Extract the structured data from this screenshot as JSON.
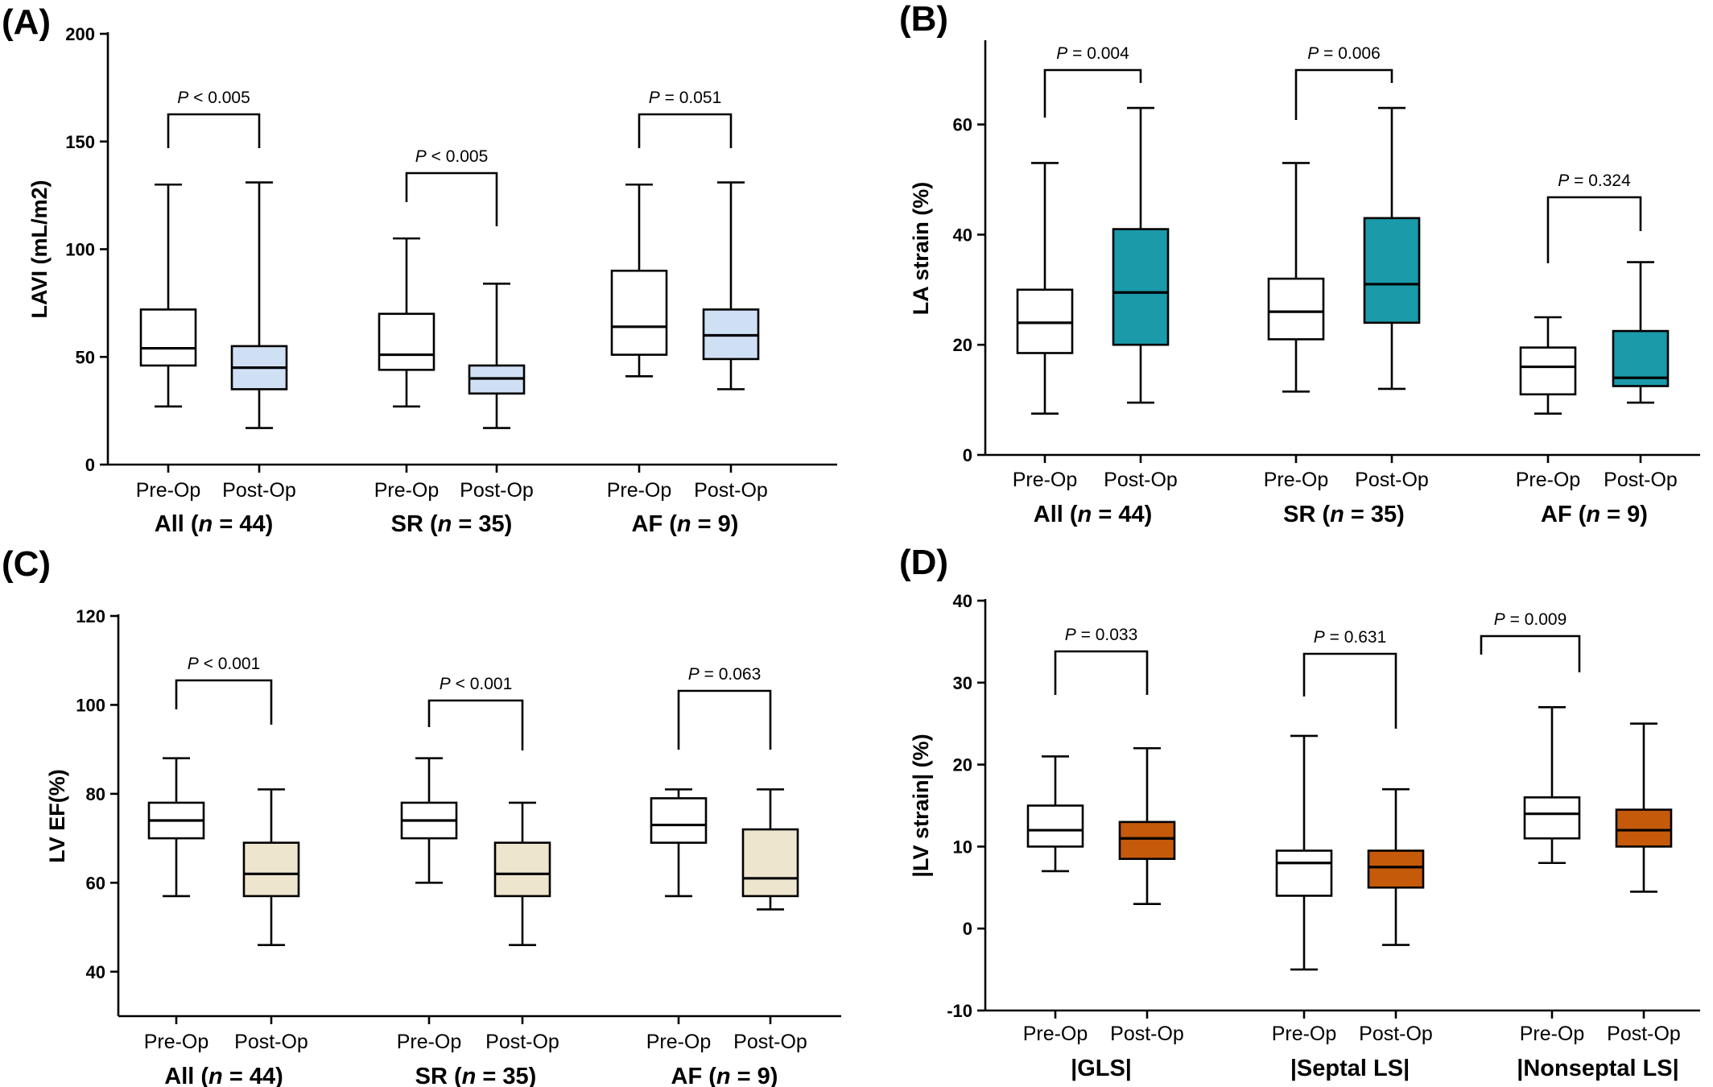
{
  "chart_data": [
    {
      "id": "A",
      "type": "box",
      "panel_label": "(A)",
      "ylabel": "LAVI (mL/m2)",
      "ylim": [
        0,
        200
      ],
      "yticks": [
        0,
        50,
        100,
        150,
        200
      ],
      "box_fill": "#cfe0f5",
      "conditions": [
        "Pre-Op",
        "Post-Op"
      ],
      "groups": [
        {
          "label_main": "All",
          "label_n": "n",
          "label_rest": " = 44)",
          "pval": "< 0.005",
          "pre": {
            "min": 27,
            "q1": 46,
            "median": 54,
            "q3": 72,
            "max": 130
          },
          "post": {
            "min": 17,
            "q1": 35,
            "median": 45,
            "q3": 55,
            "max": 131
          }
        },
        {
          "label_main": "SR",
          "label_n": "n",
          "label_rest": " = 35)",
          "pval": "< 0.005",
          "pre": {
            "min": 27,
            "q1": 44,
            "median": 51,
            "q3": 70,
            "max": 105
          },
          "post": {
            "min": 17,
            "q1": 33,
            "median": 40,
            "q3": 46,
            "max": 84
          }
        },
        {
          "label_main": "AF",
          "label_n": "n",
          "label_rest": " = 9)",
          "pval": "= 0.051",
          "pre": {
            "min": 41,
            "q1": 51,
            "median": 64,
            "q3": 90,
            "max": 130
          },
          "post": {
            "min": 35,
            "q1": 49,
            "median": 60,
            "q3": 72,
            "max": 131
          }
        }
      ]
    },
    {
      "id": "B",
      "type": "box",
      "panel_label": "(B)",
      "ylabel": "LA strain (%)",
      "ylim": [
        0,
        75
      ],
      "yticks": [
        0,
        20,
        40,
        60
      ],
      "box_fill": "#1b9aaa",
      "conditions": [
        "Pre-Op",
        "Post-Op"
      ],
      "groups": [
        {
          "label_main": "All",
          "label_n": "n",
          "label_rest": " = 44)",
          "pval": "= 0.004",
          "pre": {
            "min": 7.5,
            "q1": 18.5,
            "median": 24,
            "q3": 30,
            "max": 53
          },
          "post": {
            "min": 9.5,
            "q1": 20,
            "median": 29.5,
            "q3": 41,
            "max": 63
          }
        },
        {
          "label_main": "SR",
          "label_n": "n",
          "label_rest": " = 35)",
          "pval": "= 0.006",
          "pre": {
            "min": 11.5,
            "q1": 21,
            "median": 26,
            "q3": 32,
            "max": 53
          },
          "post": {
            "min": 12,
            "q1": 24,
            "median": 31,
            "q3": 43,
            "max": 63
          }
        },
        {
          "label_main": "AF",
          "label_n": "n",
          "label_rest": " = 9)",
          "pval": "= 0.324",
          "pre": {
            "min": 7.5,
            "q1": 11,
            "median": 16,
            "q3": 19.5,
            "max": 25
          },
          "post": {
            "min": 9.5,
            "q1": 12.5,
            "median": 14,
            "q3": 22.5,
            "max": 35
          }
        }
      ]
    },
    {
      "id": "C",
      "type": "box",
      "panel_label": "(C)",
      "ylabel": "LV EF(%)",
      "ylim": [
        30,
        120
      ],
      "yticks": [
        40,
        60,
        80,
        100,
        120
      ],
      "box_fill": "#ede5cd",
      "conditions": [
        "Pre-Op",
        "Post-Op"
      ],
      "groups": [
        {
          "label_main": "All",
          "label_n": "n",
          "label_rest": " = 44)",
          "pval": "< 0.001",
          "pre": {
            "min": 57,
            "q1": 70,
            "median": 74,
            "q3": 78,
            "max": 88
          },
          "post": {
            "min": 46,
            "q1": 57,
            "median": 62,
            "q3": 69,
            "max": 81
          }
        },
        {
          "label_main": "SR",
          "label_n": "n",
          "label_rest": " = 35)",
          "pval": "< 0.001",
          "pre": {
            "min": 60,
            "q1": 70,
            "median": 74,
            "q3": 78,
            "max": 88
          },
          "post": {
            "min": 46,
            "q1": 57,
            "median": 62,
            "q3": 69,
            "max": 78
          }
        },
        {
          "label_main": "AF",
          "label_n": "n",
          "label_rest": " = 9)",
          "pval": "= 0.063",
          "pre": {
            "min": 57,
            "q1": 69,
            "median": 73,
            "q3": 79,
            "max": 81
          },
          "post": {
            "min": 54,
            "q1": 57,
            "median": 61,
            "q3": 72,
            "max": 81
          }
        }
      ]
    },
    {
      "id": "D",
      "type": "box",
      "panel_label": "(D)",
      "ylabel": "|LV strain| (%)",
      "ylim": [
        -10,
        40
      ],
      "yticks": [
        -10,
        0,
        10,
        20,
        30,
        40
      ],
      "box_fill": "#c55a0a",
      "conditions": [
        "Pre-Op",
        "Post-Op"
      ],
      "groups": [
        {
          "label_main": "|GLS|",
          "label_n": "",
          "label_rest": "",
          "pval": "= 0.033",
          "pre": {
            "min": 7,
            "q1": 10,
            "median": 12,
            "q3": 15,
            "max": 21
          },
          "post": {
            "min": 3,
            "q1": 8.5,
            "median": 11,
            "q3": 13,
            "max": 22
          }
        },
        {
          "label_main": "|Septal LS|",
          "label_n": "",
          "label_rest": "",
          "pval": "= 0.631",
          "pre": {
            "min": -5,
            "q1": 4,
            "median": 8,
            "q3": 9.5,
            "max": 23.5
          },
          "post": {
            "min": -2,
            "q1": 5,
            "median": 7.5,
            "q3": 9.5,
            "max": 17
          }
        },
        {
          "label_main": "|Nonseptal LS|",
          "label_n": "",
          "label_rest": "",
          "pval": "= 0.009",
          "pre": {
            "min": 8,
            "q1": 11,
            "median": 14,
            "q3": 16,
            "max": 27
          },
          "post": {
            "min": 4.5,
            "q1": 10,
            "median": 12,
            "q3": 14.5,
            "max": 25
          }
        }
      ]
    }
  ]
}
